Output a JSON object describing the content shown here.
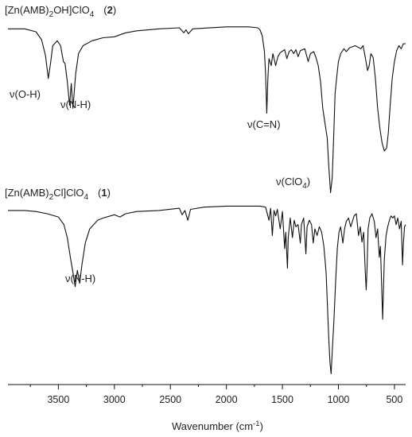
{
  "chart_data": {
    "type": "line",
    "xlabel": "Wavenumber (cm",
    "xlabel_sup": "-1",
    "xlabel_end": ")",
    "xlim": [
      3950,
      400
    ],
    "x_reversed": true,
    "grid": false,
    "x_ticks": [
      "3500",
      "3000",
      "2500",
      "2000",
      "1500",
      "1000",
      "500"
    ],
    "x_tick_values": [
      3500,
      3000,
      2500,
      2000,
      1500,
      1000,
      500
    ],
    "series": [
      {
        "label_parts": {
          "pre": "[Zn(AMB)",
          "sub": "2",
          "mid": "OH]ClO",
          "sub2": "4",
          "id": "2"
        },
        "points": [
          [
            3950,
            0.05
          ],
          [
            3800,
            0.05
          ],
          [
            3700,
            0.08
          ],
          [
            3650,
            0.16
          ],
          [
            3615,
            0.32
          ],
          [
            3590,
            0.55
          ],
          [
            3570,
            0.4
          ],
          [
            3550,
            0.22
          ],
          [
            3510,
            0.17
          ],
          [
            3480,
            0.22
          ],
          [
            3455,
            0.38
          ],
          [
            3440,
            0.4
          ],
          [
            3420,
            0.58
          ],
          [
            3400,
            0.82
          ],
          [
            3385,
            0.6
          ],
          [
            3370,
            0.85
          ],
          [
            3345,
            0.5
          ],
          [
            3320,
            0.3
          ],
          [
            3280,
            0.22
          ],
          [
            3200,
            0.17
          ],
          [
            3100,
            0.14
          ],
          [
            3000,
            0.13
          ],
          [
            2950,
            0.11
          ],
          [
            2900,
            0.09
          ],
          [
            2800,
            0.07
          ],
          [
            2600,
            0.05
          ],
          [
            2420,
            0.04
          ],
          [
            2380,
            0.09
          ],
          [
            2360,
            0.06
          ],
          [
            2340,
            0.1
          ],
          [
            2300,
            0.05
          ],
          [
            2000,
            0.03
          ],
          [
            1800,
            0.03
          ],
          [
            1720,
            0.04
          ],
          [
            1700,
            0.06
          ],
          [
            1680,
            0.12
          ],
          [
            1660,
            0.28
          ],
          [
            1650,
            0.5
          ],
          [
            1640,
            0.9
          ],
          [
            1630,
            0.55
          ],
          [
            1620,
            0.35
          ],
          [
            1600,
            0.42
          ],
          [
            1585,
            0.3
          ],
          [
            1560,
            0.42
          ],
          [
            1540,
            0.33
          ],
          [
            1520,
            0.29
          ],
          [
            1480,
            0.26
          ],
          [
            1460,
            0.35
          ],
          [
            1440,
            0.28
          ],
          [
            1420,
            0.26
          ],
          [
            1400,
            0.3
          ],
          [
            1380,
            0.26
          ],
          [
            1360,
            0.33
          ],
          [
            1340,
            0.27
          ],
          [
            1300,
            0.25
          ],
          [
            1270,
            0.38
          ],
          [
            1250,
            0.3
          ],
          [
            1220,
            0.28
          ],
          [
            1200,
            0.34
          ],
          [
            1180,
            0.42
          ],
          [
            1160,
            0.58
          ],
          [
            1140,
            0.85
          ],
          [
            1120,
            1.0
          ],
          [
            1100,
            1.15
          ],
          [
            1085,
            1.45
          ],
          [
            1070,
            1.7
          ],
          [
            1055,
            1.55
          ],
          [
            1040,
            1.05
          ],
          [
            1030,
            0.7
          ],
          [
            1010,
            0.48
          ],
          [
            1000,
            0.38
          ],
          [
            980,
            0.3
          ],
          [
            950,
            0.25
          ],
          [
            930,
            0.28
          ],
          [
            900,
            0.24
          ],
          [
            850,
            0.22
          ],
          [
            800,
            0.25
          ],
          [
            780,
            0.22
          ],
          [
            760,
            0.34
          ],
          [
            740,
            0.47
          ],
          [
            725,
            0.42
          ],
          [
            710,
            0.3
          ],
          [
            690,
            0.34
          ],
          [
            670,
            0.55
          ],
          [
            650,
            0.85
          ],
          [
            630,
            1.05
          ],
          [
            610,
            1.2
          ],
          [
            590,
            1.28
          ],
          [
            570,
            1.25
          ],
          [
            555,
            1.1
          ],
          [
            540,
            0.85
          ],
          [
            520,
            0.55
          ],
          [
            500,
            0.38
          ],
          [
            480,
            0.27
          ],
          [
            460,
            0.22
          ],
          [
            440,
            0.25
          ],
          [
            420,
            0.2
          ],
          [
            400,
            0.2
          ]
        ]
      },
      {
        "label_parts": {
          "pre": "[Zn(AMB)",
          "sub": "2",
          "mid": "Cl]ClO",
          "sub2": "4",
          "id": "1"
        },
        "points": [
          [
            3950,
            0.05
          ],
          [
            3800,
            0.05
          ],
          [
            3700,
            0.06
          ],
          [
            3600,
            0.08
          ],
          [
            3500,
            0.11
          ],
          [
            3450,
            0.18
          ],
          [
            3420,
            0.3
          ],
          [
            3390,
            0.5
          ],
          [
            3370,
            0.62
          ],
          [
            3350,
            0.75
          ],
          [
            3330,
            0.6
          ],
          [
            3310,
            0.72
          ],
          [
            3290,
            0.55
          ],
          [
            3260,
            0.35
          ],
          [
            3220,
            0.22
          ],
          [
            3150,
            0.14
          ],
          [
            3100,
            0.12
          ],
          [
            3000,
            0.09
          ],
          [
            2950,
            0.11
          ],
          [
            2900,
            0.08
          ],
          [
            2800,
            0.06
          ],
          [
            2600,
            0.05
          ],
          [
            2420,
            0.03
          ],
          [
            2395,
            0.09
          ],
          [
            2370,
            0.05
          ],
          [
            2345,
            0.14
          ],
          [
            2320,
            0.04
          ],
          [
            2200,
            0.02
          ],
          [
            2000,
            0.01
          ],
          [
            1800,
            0.01
          ],
          [
            1700,
            0.01
          ],
          [
            1650,
            0.02
          ],
          [
            1620,
            0.14
          ],
          [
            1605,
            0.03
          ],
          [
            1590,
            0.28
          ],
          [
            1575,
            0.05
          ],
          [
            1560,
            0.1
          ],
          [
            1545,
            0.04
          ],
          [
            1520,
            0.22
          ],
          [
            1500,
            0.06
          ],
          [
            1480,
            0.4
          ],
          [
            1470,
            0.25
          ],
          [
            1455,
            0.58
          ],
          [
            1448,
            0.3
          ],
          [
            1430,
            0.12
          ],
          [
            1410,
            0.3
          ],
          [
            1395,
            0.14
          ],
          [
            1380,
            0.2
          ],
          [
            1360,
            0.18
          ],
          [
            1340,
            0.35
          ],
          [
            1330,
            0.18
          ],
          [
            1310,
            0.12
          ],
          [
            1290,
            0.45
          ],
          [
            1280,
            0.2
          ],
          [
            1260,
            0.14
          ],
          [
            1240,
            0.18
          ],
          [
            1225,
            0.35
          ],
          [
            1210,
            0.22
          ],
          [
            1190,
            0.28
          ],
          [
            1170,
            0.2
          ],
          [
            1150,
            0.25
          ],
          [
            1130,
            0.38
          ],
          [
            1110,
            0.62
          ],
          [
            1095,
            1.0
          ],
          [
            1085,
            1.25
          ],
          [
            1075,
            1.45
          ],
          [
            1065,
            1.55
          ],
          [
            1055,
            1.35
          ],
          [
            1040,
            1.05
          ],
          [
            1025,
            0.7
          ],
          [
            1010,
            0.4
          ],
          [
            995,
            0.25
          ],
          [
            980,
            0.2
          ],
          [
            960,
            0.35
          ],
          [
            945,
            0.22
          ],
          [
            930,
            0.15
          ],
          [
            910,
            0.12
          ],
          [
            890,
            0.2
          ],
          [
            875,
            0.15
          ],
          [
            860,
            0.1
          ],
          [
            840,
            0.08
          ],
          [
            820,
            0.28
          ],
          [
            805,
            0.2
          ],
          [
            790,
            0.34
          ],
          [
            775,
            0.25
          ],
          [
            760,
            0.62
          ],
          [
            752,
            0.78
          ],
          [
            744,
            0.58
          ],
          [
            735,
            0.22
          ],
          [
            720,
            0.12
          ],
          [
            700,
            0.08
          ],
          [
            680,
            0.15
          ],
          [
            665,
            0.3
          ],
          [
            650,
            0.22
          ],
          [
            635,
            0.48
          ],
          [
            625,
            0.38
          ],
          [
            612,
            0.8
          ],
          [
            605,
            1.05
          ],
          [
            598,
            0.78
          ],
          [
            590,
            0.5
          ],
          [
            575,
            0.28
          ],
          [
            560,
            0.2
          ],
          [
            545,
            0.14
          ],
          [
            530,
            0.1
          ],
          [
            515,
            0.12
          ],
          [
            500,
            0.1
          ],
          [
            485,
            0.18
          ],
          [
            470,
            0.12
          ],
          [
            455,
            0.22
          ],
          [
            440,
            0.15
          ],
          [
            428,
            0.55
          ],
          [
            420,
            0.35
          ],
          [
            410,
            0.2
          ],
          [
            400,
            0.18
          ]
        ]
      }
    ],
    "annotations": [
      {
        "text": "ν(O-H)"
      },
      {
        "text": "ν(N-H)"
      },
      {
        "text": "ν(C=N)"
      },
      {
        "text": "ν(ClO",
        "sub": "4",
        "end": ")"
      },
      {
        "text": "ν(N-H)"
      }
    ]
  }
}
